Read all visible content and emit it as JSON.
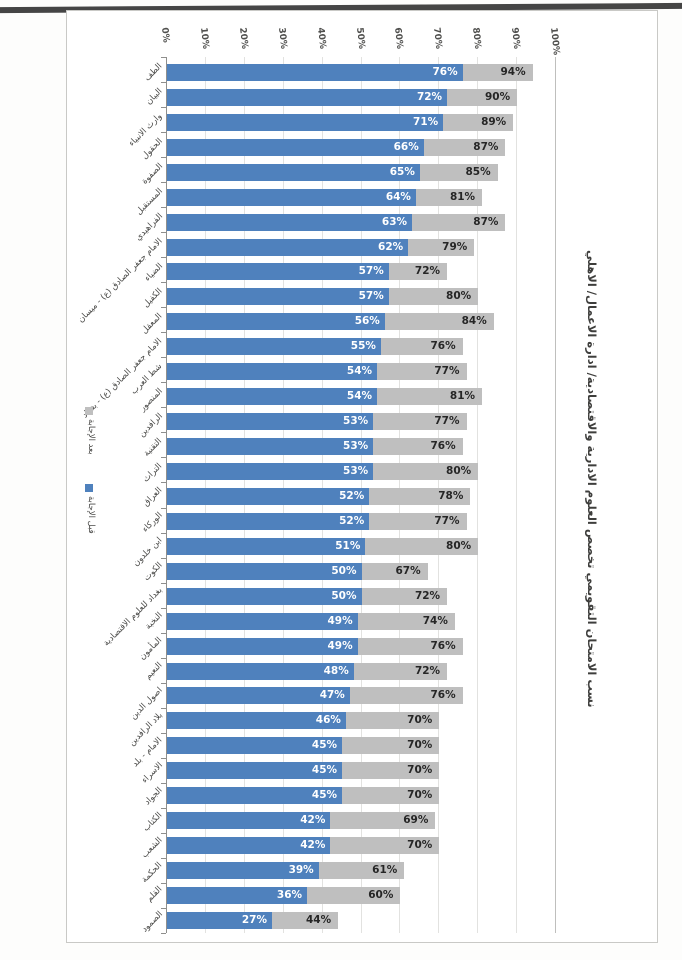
{
  "title": {
    "text": "نسب الامتحان التقويمي تخصص العلوم الادارية والاقتصادية/ ادارة الاعمال/ الاهلي"
  },
  "legend": [
    {
      "label": "بعد الإجابة",
      "color": "#bfbfbf"
    },
    {
      "label": "قبل الإجابة",
      "color": "#4f81bd"
    }
  ],
  "colors": {
    "bar_before": "#4f81bd",
    "bar_after": "#bfbfbf",
    "value_label_on_blue": "#ffffff",
    "value_label_on_gray": "#262626",
    "gridline": "#e2e2e0",
    "axis": "#8f8f8d",
    "text": "#4a4a48"
  },
  "chart_data": {
    "type": "bar",
    "orientation": "horizontal-stacked",
    "title": "نسب الامتحان التقويمي تخصص العلوم الادارية والاقتصادية/ ادارة الاعمال/ الاهلي",
    "note": "second series values are totals; gray segment drawn from first value to second value",
    "axis": {
      "min": 0,
      "max": 100,
      "ticks": [
        "0%",
        "10%",
        "20%",
        "30%",
        "40%",
        "50%",
        "60%",
        "70%",
        "80%",
        "90%",
        "100%"
      ]
    },
    "legend_position": "left-rotated",
    "grid": true,
    "categories": [
      "الطف",
      "البيان",
      "وارث الانبياء",
      "الحقول",
      "الصفوة",
      "المستقبل",
      "الفراهيدي",
      "الامام جعفر الصادق (ع) - ميسان",
      "الضياء",
      "الكفيل",
      "المعقل",
      "الامام جعفر الصادق (ع) - بغداد",
      "شط العرب",
      "المنصور",
      "الرافدين",
      "التقنية",
      "التراث",
      "العراق",
      "الوركاء",
      "ابن خلدون",
      "الكوت",
      "بغداد للعلوم الاقتصادية",
      "النخبة",
      "المأمون",
      "النعيم",
      "اصول الدين",
      "بلاد الرافدين",
      "الامام - بلد",
      "الاسراء",
      "الجواد",
      "الكتاب",
      "الشعب",
      "الحكمة",
      "القلم",
      "الصمود"
    ],
    "series": [
      {
        "name": "قبل الإجابة",
        "color": "#4f81bd",
        "values": [
          76,
          72,
          71,
          66,
          65,
          64,
          63,
          62,
          57,
          57,
          56,
          55,
          54,
          54,
          53,
          53,
          53,
          52,
          52,
          51,
          50,
          50,
          49,
          49,
          48,
          47,
          46,
          45,
          45,
          45,
          42,
          42,
          39,
          36,
          27
        ]
      },
      {
        "name": "بعد الإجابة",
        "color": "#bfbfbf",
        "values": [
          94,
          90,
          89,
          87,
          85,
          81,
          87,
          79,
          72,
          80,
          84,
          76,
          77,
          81,
          77,
          76,
          80,
          78,
          77,
          80,
          67,
          72,
          74,
          76,
          72,
          76,
          70,
          70,
          70,
          70,
          69,
          70,
          61,
          60,
          44
        ]
      }
    ]
  }
}
